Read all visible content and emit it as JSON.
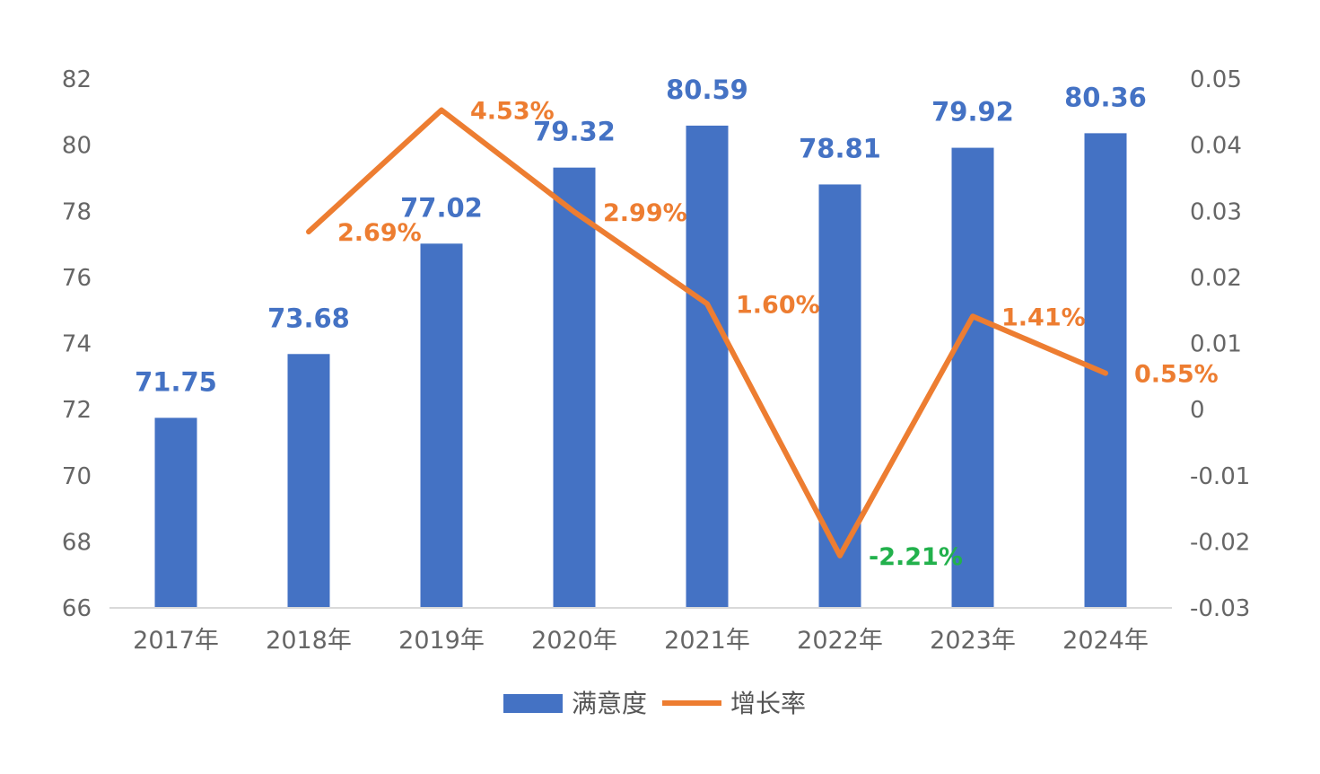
{
  "chart_data": {
    "type": "bar",
    "categories": [
      "2017年",
      "2018年",
      "2019年",
      "2020年",
      "2021年",
      "2022年",
      "2023年",
      "2024年"
    ],
    "series": [
      {
        "name": "满意度",
        "type": "bar",
        "axis": "left",
        "values": [
          71.75,
          73.68,
          77.02,
          79.32,
          80.59,
          78.81,
          79.92,
          80.36
        ],
        "labels": [
          "71.75",
          "73.68",
          "77.02",
          "79.32",
          "80.59",
          "78.81",
          "79.92",
          "80.36"
        ],
        "color": "#4472C4"
      },
      {
        "name": "增长率",
        "type": "line",
        "axis": "right",
        "values": [
          null,
          0.0269,
          0.0453,
          0.0299,
          0.016,
          -0.0221,
          0.0141,
          0.0055
        ],
        "labels": [
          "",
          "2.69%",
          "4.53%",
          "2.99%",
          "1.60%",
          "-2.21%",
          "1.41%",
          "0.55%"
        ],
        "color": "#ED7D31",
        "negative_label_color": "#22B14C"
      }
    ],
    "y_left": {
      "lim": [
        66,
        82
      ],
      "ticks": [
        66,
        68,
        70,
        72,
        74,
        76,
        78,
        80,
        82
      ],
      "tick_labels": [
        "66",
        "68",
        "70",
        "72",
        "74",
        "76",
        "78",
        "80",
        "82"
      ]
    },
    "y_right": {
      "lim": [
        -0.03,
        0.05
      ],
      "ticks": [
        -0.03,
        -0.02,
        -0.01,
        0,
        0.01,
        0.02,
        0.03,
        0.04,
        0.05
      ],
      "tick_labels": [
        "-0.03",
        "-0.02",
        "-0.01",
        "0",
        "0.01",
        "0.02",
        "0.03",
        "0.04",
        "0.05"
      ]
    },
    "grid": false,
    "legend": {
      "position": "bottom",
      "entries": [
        "满意度",
        "增长率"
      ]
    },
    "axis_color": "#D9D9D9",
    "tick_color": "#666666"
  }
}
